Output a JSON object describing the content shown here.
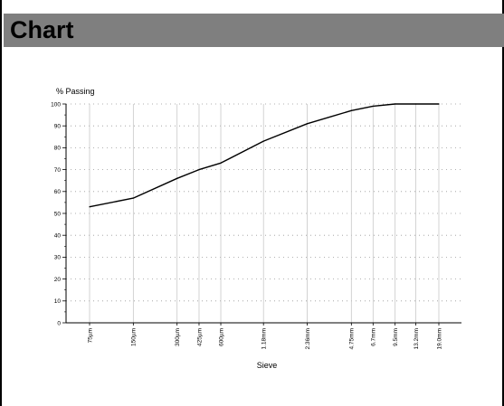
{
  "header": {
    "title": "Chart"
  },
  "chart_data": {
    "type": "line",
    "ylabel": "% Passing",
    "xlabel": "Sieve",
    "categories": [
      "75µm",
      "150µm",
      "300µm",
      "425µm",
      "600µm",
      "1.18mm",
      "2.36mm",
      "4.75mm",
      "6.7mm",
      "9.5mm",
      "13.2mm",
      "19.0mm"
    ],
    "sieve_sizes_mm": [
      0.075,
      0.15,
      0.3,
      0.425,
      0.6,
      1.18,
      2.36,
      4.75,
      6.7,
      9.5,
      13.2,
      19.0
    ],
    "values": [
      53,
      57,
      66,
      70,
      73,
      83,
      91,
      97,
      99,
      100,
      100,
      100
    ],
    "ylim": [
      0,
      100
    ],
    "yticks": [
      0,
      10,
      20,
      30,
      40,
      50,
      60,
      70,
      80,
      90,
      100
    ],
    "x_scale": "log",
    "grid": true,
    "line_color": "#000000",
    "grid_color": "#999999"
  }
}
